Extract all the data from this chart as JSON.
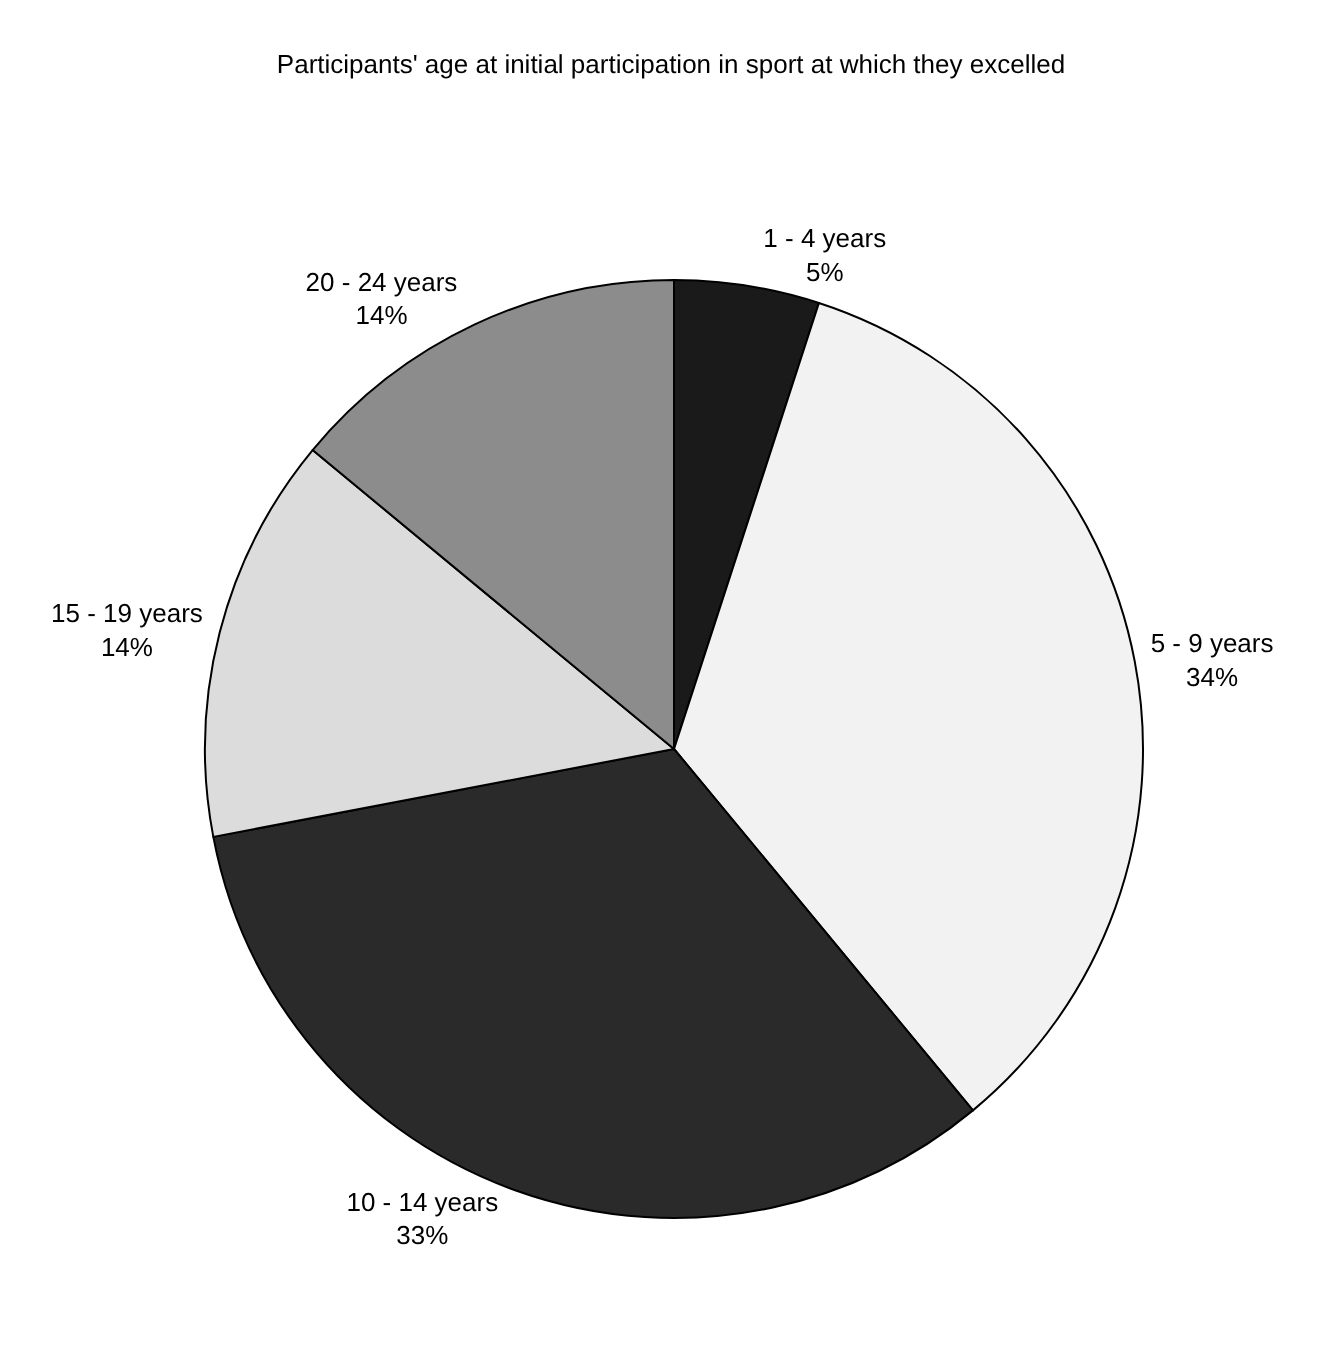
{
  "chart_data": {
    "type": "pie",
    "title": "Participants' age at initial participation in sport at which they excelled",
    "categories": [
      "1 - 4 years",
      "5 - 9 years",
      "10 - 14 years",
      "15 - 19 years",
      "20 - 24 years"
    ],
    "values": [
      5,
      34,
      33,
      14,
      14
    ],
    "value_labels": [
      "5%",
      "34%",
      "33%",
      "14%",
      "14%"
    ],
    "colors": [
      "#1a1a1a",
      "#f2f2f2",
      "#2a2a2a",
      "#dcdcdc",
      "#8c8c8c"
    ],
    "legend": false
  }
}
